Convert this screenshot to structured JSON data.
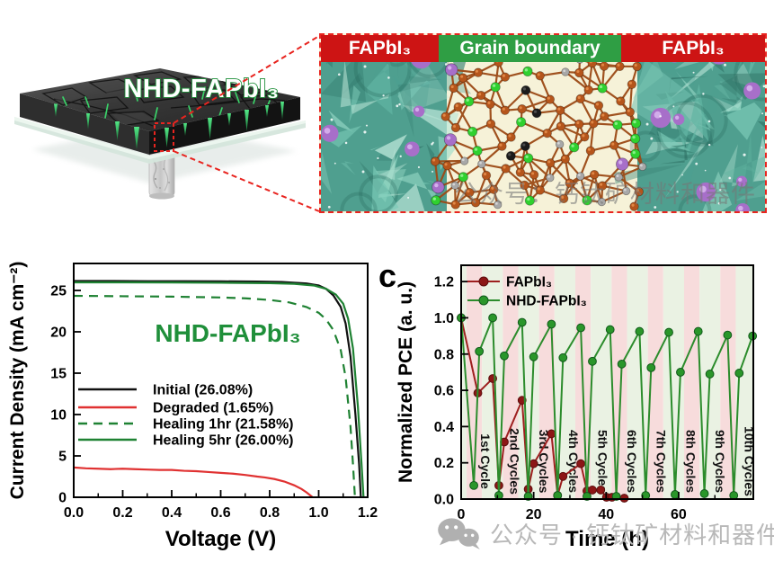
{
  "panel_a": {
    "film_label": "NHD-FAPbI₃"
  },
  "inset": {
    "labels": [
      {
        "text": "FAPbI₃"
      },
      {
        "text": "Grain boundary"
      },
      {
        "text": "FAPbI₃"
      }
    ],
    "colors": {
      "red": "#cd1414",
      "green": "#2f9e44",
      "border": "#e8241f"
    }
  },
  "watermarks": {
    "top": "公众号：钙钛矿材料和器件",
    "bottom": "公众号 · 钙钛矿材料和器件"
  },
  "chart_data": [
    {
      "type": "line",
      "title": "NHD-FAPbI₃",
      "title_color": "#1f8f3a",
      "xlabel": "Voltage (V)",
      "ylabel": "Current Density (mA cm⁻²)",
      "xlim": [
        0,
        1.2
      ],
      "ylim": [
        0,
        28.26
      ],
      "xticks": [
        "0.0",
        "0.2",
        "0.4",
        "0.6",
        "0.8",
        "1.0",
        "1.2"
      ],
      "xminor": [
        0.1,
        0.3,
        0.5,
        0.7,
        0.9,
        1.1
      ],
      "yticks": [
        "0",
        "5",
        "10",
        "15",
        "20",
        "25"
      ],
      "series": [
        {
          "name": "Initial (26.08%)",
          "color": "#111111",
          "dash": "none",
          "points": [
            [
              0,
              26.15
            ],
            [
              0.15,
              26.15
            ],
            [
              0.3,
              26.12
            ],
            [
              0.45,
              26.12
            ],
            [
              0.6,
              26.1
            ],
            [
              0.75,
              26.08
            ],
            [
              0.85,
              26.02
            ],
            [
              0.95,
              25.85
            ],
            [
              1.0,
              25.6
            ],
            [
              1.03,
              25.2
            ],
            [
              1.06,
              24.4
            ],
            [
              1.09,
              23.0
            ],
            [
              1.11,
              21.0
            ],
            [
              1.13,
              17.0
            ],
            [
              1.15,
              10.0
            ],
            [
              1.165,
              4.0
            ],
            [
              1.172,
              0
            ]
          ]
        },
        {
          "name": "Degraded (1.65%)",
          "color": "#e03131",
          "dash": "none",
          "points": [
            [
              0,
              3.6
            ],
            [
              0.05,
              3.5
            ],
            [
              0.1,
              3.45
            ],
            [
              0.15,
              3.4
            ],
            [
              0.2,
              3.45
            ],
            [
              0.25,
              3.4
            ],
            [
              0.3,
              3.35
            ],
            [
              0.35,
              3.3
            ],
            [
              0.4,
              3.3
            ],
            [
              0.45,
              3.2
            ],
            [
              0.5,
              3.15
            ],
            [
              0.55,
              3.05
            ],
            [
              0.6,
              2.95
            ],
            [
              0.65,
              2.85
            ],
            [
              0.7,
              2.7
            ],
            [
              0.75,
              2.5
            ],
            [
              0.78,
              2.4
            ],
            [
              0.82,
              2.2
            ],
            [
              0.86,
              1.9
            ],
            [
              0.9,
              1.45
            ],
            [
              0.93,
              1.0
            ],
            [
              0.95,
              0.6
            ],
            [
              0.965,
              0.25
            ],
            [
              0.975,
              0
            ]
          ]
        },
        {
          "name": "Healing 1hr (21.58%)",
          "color": "#1f8233",
          "dash": "10,7",
          "points": [
            [
              0,
              24.35
            ],
            [
              0.2,
              24.3
            ],
            [
              0.4,
              24.25
            ],
            [
              0.6,
              24.15
            ],
            [
              0.7,
              24.05
            ],
            [
              0.8,
              23.85
            ],
            [
              0.88,
              23.55
            ],
            [
              0.95,
              23.0
            ],
            [
              1.0,
              22.3
            ],
            [
              1.03,
              21.5
            ],
            [
              1.06,
              20.2
            ],
            [
              1.09,
              17.8
            ],
            [
              1.11,
              14.5
            ],
            [
              1.13,
              8.5
            ],
            [
              1.14,
              4.0
            ],
            [
              1.148,
              0
            ]
          ]
        },
        {
          "name": "Healing 5hr (26.00%)",
          "color": "#1f8233",
          "dash": "none",
          "points": [
            [
              0,
              25.98
            ],
            [
              0.2,
              25.98
            ],
            [
              0.4,
              25.96
            ],
            [
              0.6,
              25.93
            ],
            [
              0.8,
              25.88
            ],
            [
              0.9,
              25.8
            ],
            [
              0.98,
              25.6
            ],
            [
              1.03,
              25.2
            ],
            [
              1.07,
              24.5
            ],
            [
              1.1,
              23.4
            ],
            [
              1.12,
              21.6
            ],
            [
              1.14,
              18.0
            ],
            [
              1.16,
              11.0
            ],
            [
              1.175,
              4.0
            ],
            [
              1.183,
              0
            ]
          ]
        }
      ]
    },
    {
      "type": "line-scatter",
      "panel_label": "c",
      "xlabel": "Time (h)",
      "ylabel": "Normalized PCE (a. u.)",
      "xlim": [
        0,
        80.6
      ],
      "ylim": [
        0,
        1.29
      ],
      "xticks": [
        "0",
        "20",
        "40",
        "60"
      ],
      "xminor": [
        10,
        30,
        50,
        70
      ],
      "yticks": [
        "0.0",
        "0.2",
        "0.4",
        "0.6",
        "0.8",
        "1.0",
        "1.2"
      ],
      "bands": {
        "pink": "#f7dcdc",
        "green": "#eaf2e3",
        "start": 1.5,
        "period": 10.0,
        "pink_width": 4.25
      },
      "cycle_labels": [
        {
          "text": "1st Cycle",
          "t": 5.4
        },
        {
          "text": "2nd Cycles",
          "t": 13.5
        },
        {
          "text": "3rd Cycles",
          "t": 21.6
        },
        {
          "text": "4th Cycles",
          "t": 29.7
        },
        {
          "text": "5th Cycles",
          "t": 37.8
        },
        {
          "text": "6th Cycles",
          "t": 45.9
        },
        {
          "text": "7th Cycles",
          "t": 54.0
        },
        {
          "text": "8th Cycles",
          "t": 62.1
        },
        {
          "text": "9th Cycles",
          "t": 70.2
        },
        {
          "text": "10th Cycles",
          "t": 78.3
        }
      ],
      "series": [
        {
          "name": "FAPbI₃",
          "color": "#9e1f1f",
          "marker": "#8c1616",
          "marker_edge": "#5c0e0e",
          "points": [
            [
              0,
              1.0
            ],
            [
              4.6,
              0.585
            ],
            [
              8.7,
              0.665
            ],
            [
              10.4,
              0.075
            ],
            [
              11.9,
              0.315
            ],
            [
              16.8,
              0.545
            ],
            [
              18.5,
              0.055
            ],
            [
              20,
              0.195
            ],
            [
              24.9,
              0.36
            ],
            [
              26.6,
              0.02
            ],
            [
              28.1,
              0.125
            ],
            [
              33,
              0.195
            ],
            [
              34.7,
              0.045
            ],
            [
              36.2,
              0.05
            ],
            [
              38.5,
              0.05
            ],
            [
              40.1,
              0.01
            ],
            [
              41.6,
              0.01
            ],
            [
              45,
              0.005
            ]
          ]
        },
        {
          "name": "NHD-FAPbI₃",
          "color": "#2c8c2c",
          "marker": "#2a962a",
          "marker_edge": "#11591b",
          "points": [
            [
              0,
              1.0
            ],
            [
              3.5,
              0.075
            ],
            [
              5,
              0.815
            ],
            [
              8.7,
              1.0
            ],
            [
              10.4,
              0.02
            ],
            [
              11.9,
              0.79
            ],
            [
              16.8,
              0.975
            ],
            [
              18.5,
              0.015
            ],
            [
              20,
              0.785
            ],
            [
              24.9,
              0.965
            ],
            [
              26.6,
              0.02
            ],
            [
              28.1,
              0.78
            ],
            [
              33,
              0.945
            ],
            [
              34.7,
              0.015
            ],
            [
              36.2,
              0.76
            ],
            [
              41.1,
              0.935
            ],
            [
              42.8,
              0.015
            ],
            [
              44.3,
              0.745
            ],
            [
              49.2,
              0.925
            ],
            [
              50.9,
              0.02
            ],
            [
              52.4,
              0.725
            ],
            [
              57.3,
              0.92
            ],
            [
              59,
              0.025
            ],
            [
              60.5,
              0.7
            ],
            [
              65.4,
              0.925
            ],
            [
              67.1,
              0.03
            ],
            [
              68.6,
              0.69
            ],
            [
              73.5,
              0.905
            ],
            [
              75.2,
              0.02
            ],
            [
              76.7,
              0.695
            ],
            [
              80.4,
              0.9
            ]
          ]
        }
      ]
    }
  ]
}
